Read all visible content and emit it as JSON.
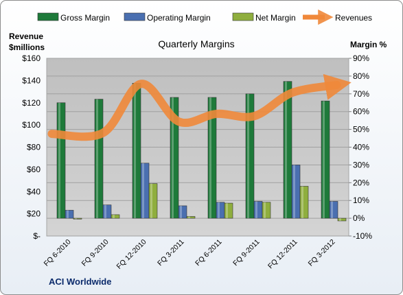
{
  "chart_data": {
    "type": "bar",
    "title": "Quarterly Margins",
    "footer": "ACI Worldwide",
    "categories": [
      "FQ 6-2010",
      "FQ 9-2010",
      "FQ 12-2010",
      "FQ 3-2011",
      "FQ 6-2011",
      "FQ 9-2011",
      "FQ 12-2011",
      "FQ 3-2012"
    ],
    "left_axis": {
      "title_line1": "Revenue",
      "title_line2": "$millions",
      "ylim": [
        0,
        160
      ],
      "ticks": [
        "$-",
        "$20",
        "$40",
        "$60",
        "$80",
        "$100",
        "$120",
        "$140",
        "$160"
      ]
    },
    "right_axis": {
      "title": "Margin %",
      "ylim": [
        -10,
        90
      ],
      "ticks": [
        "-10%",
        "0%",
        "10%",
        "20%",
        "30%",
        "40%",
        "50%",
        "60%",
        "70%",
        "80%",
        "90%"
      ]
    },
    "series": [
      {
        "name": "Gross Margin",
        "type": "bar",
        "axis": "right",
        "color": "#1e7a3a",
        "values": [
          65,
          67,
          76,
          68,
          68,
          70,
          77,
          66
        ]
      },
      {
        "name": "Operating Margin",
        "type": "bar",
        "axis": "right",
        "color": "#4a6fb0",
        "values": [
          4.5,
          7.5,
          31,
          7,
          9,
          9.5,
          30,
          9.5
        ]
      },
      {
        "name": "Net Margin",
        "type": "bar",
        "axis": "right",
        "color": "#8fae3e",
        "values": [
          -0.5,
          2,
          19.5,
          1,
          8.5,
          9,
          18,
          -1.5
        ]
      },
      {
        "name": "Revenues",
        "type": "line",
        "axis": "left",
        "color": "#f0883a",
        "values": [
          92,
          93,
          137,
          103,
          110,
          108,
          129,
          136
        ]
      }
    ],
    "legend_position": "top",
    "grid": true
  }
}
